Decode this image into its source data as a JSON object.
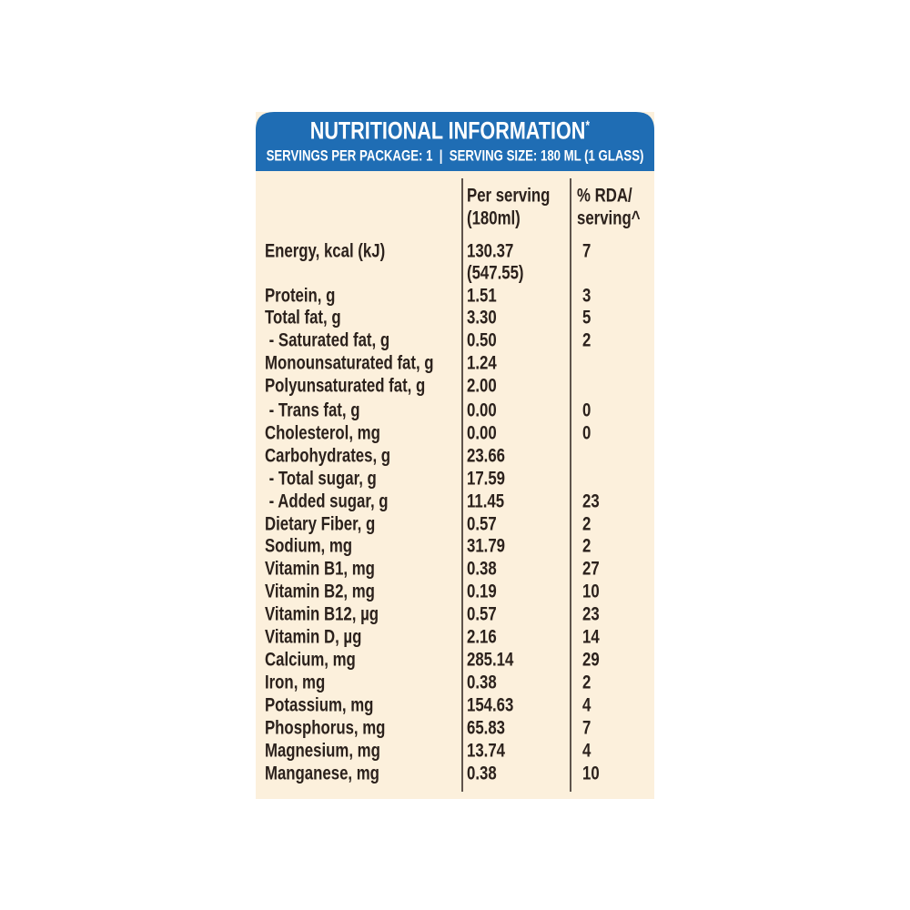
{
  "header": {
    "title": "NUTRITIONAL INFORMATION",
    "title_mark": "*",
    "subtitle": "SERVINGS PER PACKAGE: 1  |  SERVING SIZE: 180 ML (1 GLASS)"
  },
  "table": {
    "columns": [
      [
        "Per serving",
        "(180ml)"
      ],
      [
        "% RDA/",
        "serving^"
      ]
    ],
    "rows": [
      {
        "label": "Energy, kcal (kJ)",
        "per_serving": "130.37",
        "per_serving_kj": "(547.55)",
        "rda": "7"
      },
      {
        "label": "Protein, g",
        "per_serving": "1.51",
        "rda": "3"
      },
      {
        "label": "Total fat, g",
        "per_serving": "3.30",
        "rda": "5"
      },
      {
        "label": " - Saturated fat, g",
        "per_serving": "0.50",
        "rda": "2"
      },
      {
        "label": "Monounsaturated fat, g",
        "per_serving": "1.24"
      },
      {
        "label": "Polyunsaturated fat, g",
        "per_serving": "2.00"
      },
      {
        "label": " - Trans fat, g",
        "per_serving": "0.00",
        "rda": "0"
      },
      {
        "label": "Cholesterol, mg",
        "per_serving": "0.00",
        "rda": "0"
      },
      {
        "label": "Carbohydrates, g",
        "per_serving": "23.66"
      },
      {
        "label": " - Total sugar, g",
        "per_serving": "17.59"
      },
      {
        "label": " - Added sugar, g",
        "per_serving": "11.45",
        "rda": "23"
      },
      {
        "label": "Dietary Fiber, g",
        "per_serving": "0.57",
        "rda": "2"
      },
      {
        "label": "Sodium, mg",
        "per_serving": "31.79",
        "rda": "2"
      },
      {
        "label": "Vitamin B1, mg",
        "per_serving": "0.38",
        "rda": "27"
      },
      {
        "label": "Vitamin B2, mg",
        "per_serving": "0.19",
        "rda": "10"
      },
      {
        "label": "Vitamin B12, µg",
        "per_serving": "0.57",
        "rda": "23"
      },
      {
        "label": "Vitamin D, µg",
        "per_serving": "2.16",
        "rda": "14"
      },
      {
        "label": "Calcium, mg",
        "per_serving": "285.14",
        "rda": "29"
      },
      {
        "label": "Iron, mg",
        "per_serving": "0.38",
        "rda": "2"
      },
      {
        "label": "Potassium, mg",
        "per_serving": "154.63",
        "rda": "4"
      },
      {
        "label": "Phosphorus, mg",
        "per_serving": "65.83",
        "rda": "7"
      },
      {
        "label": "Magnesium, mg",
        "per_serving": "13.74",
        "rda": "4"
      },
      {
        "label": "Manganese, mg",
        "per_serving": "0.38",
        "rda": "10"
      }
    ]
  }
}
